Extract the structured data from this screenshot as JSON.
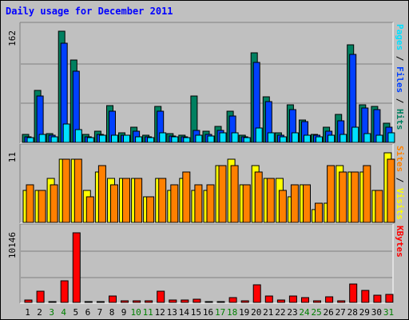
{
  "title": "Daily usage for December 2011",
  "colors": {
    "hits": "#008060",
    "files": "#0040ff",
    "pages": "#00e0ff",
    "visits": "#ffff00",
    "sites": "#ff8000",
    "kbytes": "#ff0000",
    "weekend_label": "#008000",
    "weekday_label": "#000000",
    "background": "#c0c0c0"
  },
  "chart_data": [
    {
      "type": "bar",
      "panel": "hits-files-pages",
      "ymax_label": "162",
      "ylim": [
        0,
        162
      ],
      "right_label": [
        {
          "text": "Pages",
          "color": "#00e0ff"
        },
        {
          "text": " / ",
          "color": "#000000"
        },
        {
          "text": "Files",
          "color": "#0040ff"
        },
        {
          "text": " / ",
          "color": "#000000"
        },
        {
          "text": "Hits",
          "color": "#008060"
        }
      ],
      "categories": [
        "1",
        "2",
        "3",
        "4",
        "5",
        "6",
        "7",
        "8",
        "9",
        "10",
        "11",
        "12",
        "13",
        "14",
        "15",
        "16",
        "17",
        "18",
        "19",
        "20",
        "21",
        "22",
        "23",
        "24",
        "25",
        "26",
        "27",
        "28",
        "29",
        "30",
        "31"
      ],
      "series": [
        {
          "name": "Hits",
          "values": [
            12,
            76,
            13,
            162,
            120,
            12,
            16,
            54,
            14,
            22,
            11,
            52,
            13,
            11,
            68,
            16,
            23,
            46,
            11,
            130,
            67,
            14,
            55,
            33,
            12,
            22,
            41,
            142,
            55,
            53,
            28
          ]
        },
        {
          "name": "Files",
          "values": [
            8,
            68,
            10,
            144,
            104,
            8,
            12,
            45,
            10,
            16,
            8,
            45,
            9,
            8,
            18,
            12,
            17,
            38,
            8,
            116,
            60,
            10,
            48,
            30,
            10,
            16,
            32,
            128,
            50,
            48,
            22
          ]
        },
        {
          "name": "Pages",
          "values": [
            7,
            12,
            8,
            27,
            19,
            7,
            10,
            11,
            11,
            8,
            7,
            14,
            8,
            7,
            11,
            9,
            14,
            14,
            7,
            21,
            14,
            8,
            14,
            10,
            8,
            10,
            12,
            22,
            13,
            11,
            14
          ]
        }
      ]
    },
    {
      "type": "bar",
      "panel": "visits-sites",
      "ymax_label": "11",
      "ylim": [
        0,
        11
      ],
      "right_label": [
        {
          "text": "Sites",
          "color": "#ff8000"
        },
        {
          "text": " / ",
          "color": "#000000"
        },
        {
          "text": "Visits",
          "color": "#ffff00"
        }
      ],
      "categories": [
        "1",
        "2",
        "3",
        "4",
        "5",
        "6",
        "7",
        "8",
        "9",
        "10",
        "11",
        "12",
        "13",
        "14",
        "15",
        "16",
        "17",
        "18",
        "19",
        "20",
        "21",
        "22",
        "23",
        "24",
        "25",
        "26",
        "27",
        "28",
        "29",
        "30",
        "31"
      ],
      "series": [
        {
          "name": "Visits",
          "values": [
            5,
            5,
            7,
            10,
            10,
            5,
            8,
            7,
            7,
            7,
            4,
            7,
            5,
            7,
            5,
            5,
            9,
            10,
            6,
            9,
            7,
            7,
            4,
            6,
            2,
            3,
            9,
            8,
            8,
            5,
            11
          ]
        },
        {
          "name": "Sites",
          "values": [
            6,
            5,
            6,
            10,
            10,
            4,
            9,
            6,
            7,
            7,
            4,
            7,
            6,
            8,
            6,
            6,
            9,
            9,
            6,
            8,
            7,
            5,
            6,
            6,
            3,
            9,
            8,
            8,
            9,
            5,
            10
          ]
        }
      ]
    },
    {
      "type": "bar",
      "panel": "kbytes",
      "ymax_label": "10146",
      "ylim": [
        0,
        10146
      ],
      "right_label": [
        {
          "text": "KBytes",
          "color": "#ff0000"
        }
      ],
      "categories": [
        "1",
        "2",
        "3",
        "4",
        "5",
        "6",
        "7",
        "8",
        "9",
        "10",
        "11",
        "12",
        "13",
        "14",
        "15",
        "16",
        "17",
        "18",
        "19",
        "20",
        "21",
        "22",
        "23",
        "24",
        "25",
        "26",
        "27",
        "28",
        "29",
        "30",
        "31"
      ],
      "series": [
        {
          "name": "KBytes",
          "values": [
            400,
            1600,
            150,
            3100,
            10146,
            150,
            150,
            900,
            180,
            200,
            180,
            1600,
            350,
            300,
            500,
            150,
            150,
            700,
            250,
            2550,
            900,
            350,
            900,
            700,
            250,
            800,
            250,
            2700,
            1700,
            1100,
            1200
          ]
        }
      ]
    }
  ],
  "x_labels": [
    {
      "text": "1",
      "weekend": false
    },
    {
      "text": "2",
      "weekend": false
    },
    {
      "text": "3",
      "weekend": true
    },
    {
      "text": "4",
      "weekend": true
    },
    {
      "text": "5",
      "weekend": false
    },
    {
      "text": "6",
      "weekend": false
    },
    {
      "text": "7",
      "weekend": false
    },
    {
      "text": "8",
      "weekend": false
    },
    {
      "text": "9",
      "weekend": false
    },
    {
      "text": "10",
      "weekend": true
    },
    {
      "text": "11",
      "weekend": true
    },
    {
      "text": "12",
      "weekend": false
    },
    {
      "text": "13",
      "weekend": false
    },
    {
      "text": "14",
      "weekend": false
    },
    {
      "text": "15",
      "weekend": false
    },
    {
      "text": "16",
      "weekend": false
    },
    {
      "text": "17",
      "weekend": true
    },
    {
      "text": "18",
      "weekend": true
    },
    {
      "text": "19",
      "weekend": false
    },
    {
      "text": "20",
      "weekend": false
    },
    {
      "text": "21",
      "weekend": false
    },
    {
      "text": "22",
      "weekend": false
    },
    {
      "text": "23",
      "weekend": false
    },
    {
      "text": "24",
      "weekend": true
    },
    {
      "text": "25",
      "weekend": true
    },
    {
      "text": "26",
      "weekend": false
    },
    {
      "text": "27",
      "weekend": false
    },
    {
      "text": "28",
      "weekend": false
    },
    {
      "text": "29",
      "weekend": false
    },
    {
      "text": "30",
      "weekend": false
    },
    {
      "text": "31",
      "weekend": true
    }
  ]
}
